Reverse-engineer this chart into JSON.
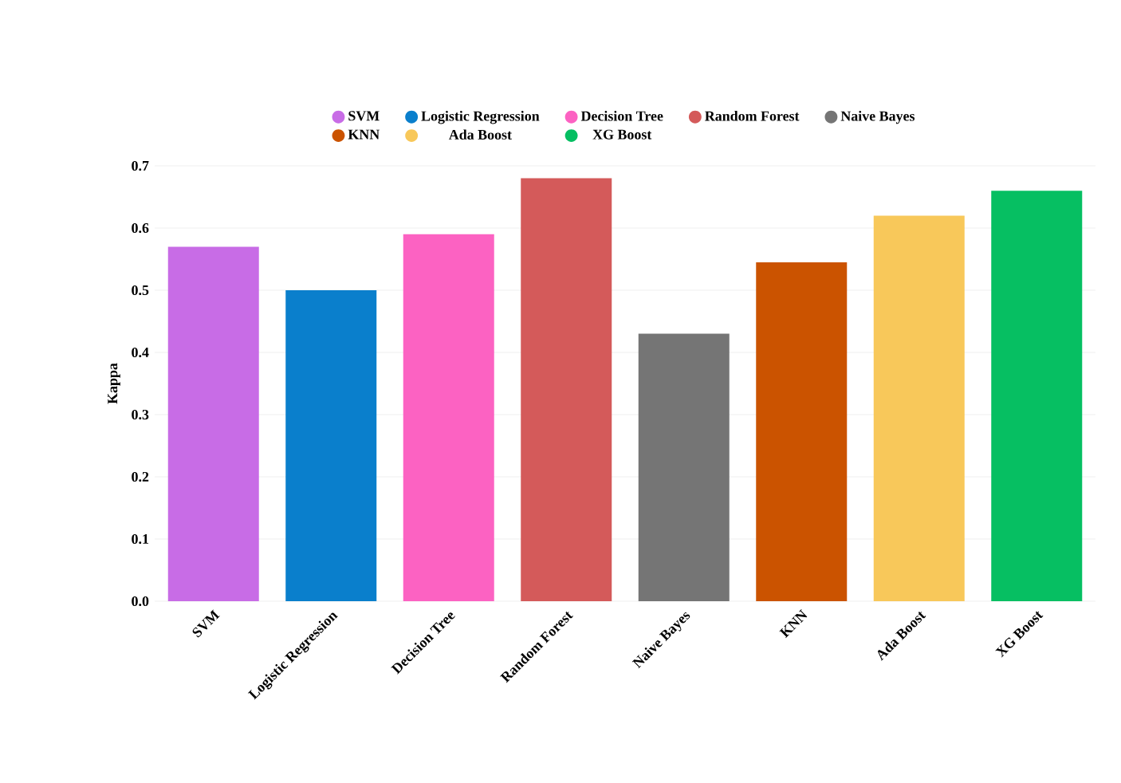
{
  "chart_data": {
    "type": "bar",
    "ylabel": "Kappa",
    "categories": [
      "SVM",
      "Logistic Regression",
      "Decision Tree",
      "Random Forest",
      "Naive Bayes",
      "KNN",
      "Ada Boost",
      "XG Boost"
    ],
    "series": [
      {
        "name": "SVM",
        "color": "#c86ce6",
        "values": [
          0.57,
          null,
          null,
          null,
          null,
          null,
          null,
          null
        ]
      },
      {
        "name": "Logistic Regression",
        "color": "#0a7fcc",
        "values": [
          null,
          0.5,
          null,
          null,
          null,
          null,
          null,
          null
        ]
      },
      {
        "name": "Decision Tree",
        "color": "#fc62c2",
        "values": [
          null,
          null,
          0.59,
          null,
          null,
          null,
          null,
          null
        ]
      },
      {
        "name": "Random Forest",
        "color": "#d45a5a",
        "values": [
          null,
          null,
          null,
          0.68,
          null,
          null,
          null,
          null
        ]
      },
      {
        "name": "Naive Bayes",
        "color": "#757575",
        "values": [
          null,
          null,
          null,
          null,
          0.43,
          null,
          null,
          null
        ]
      },
      {
        "name": "KNN",
        "color": "#cb5300",
        "values": [
          null,
          null,
          null,
          null,
          null,
          0.545,
          null,
          null
        ]
      },
      {
        "name": "Ada Boost",
        "color": "#f8c85a",
        "values": [
          null,
          null,
          null,
          null,
          null,
          null,
          0.62,
          null
        ]
      },
      {
        "name": "XG Boost",
        "color": "#06bf62",
        "values": [
          null,
          null,
          null,
          null,
          null,
          null,
          null,
          0.66
        ]
      }
    ],
    "ylim": [
      0,
      0.7
    ],
    "yticks": [
      {
        "value": 0,
        "label": "0.0"
      },
      0.1,
      0.2,
      0.3,
      0.4,
      0.5,
      0.6,
      0.7
    ],
    "grid": "y",
    "legend": "top"
  }
}
